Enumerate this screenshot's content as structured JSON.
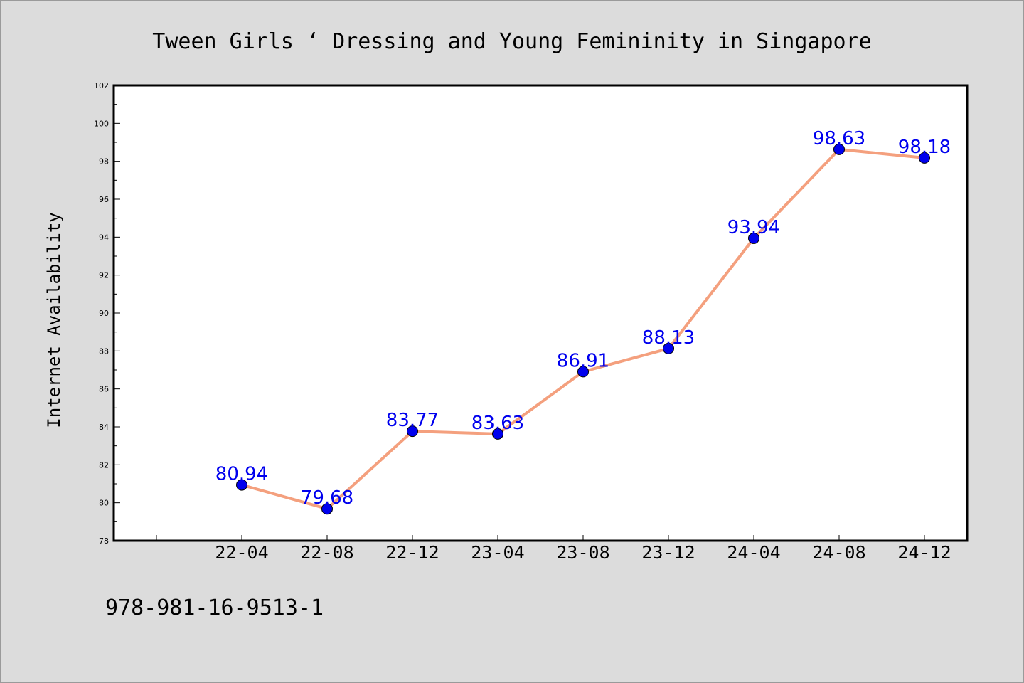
{
  "chart_data": {
    "type": "line",
    "title": "Tween Girls ‘ Dressing and Young Femininity in Singapore",
    "ylabel": "Internet Availability",
    "xlabel": "",
    "categories": [
      "22-04",
      "22-08",
      "22-12",
      "23-04",
      "23-08",
      "23-12",
      "24-04",
      "24-08",
      "24-12"
    ],
    "series": [
      {
        "values": [
          80.94,
          79.68,
          83.77,
          83.63,
          86.91,
          88.13,
          93.94,
          98.63,
          98.18
        ],
        "labels": [
          "80.94",
          "79.68",
          "83.77",
          "83.63",
          "86.91",
          "88.13",
          "93.94",
          "98.63",
          "98.18"
        ],
        "line_color": "#f4a07e",
        "marker_color": "#0000ee"
      }
    ],
    "ylim": [
      78,
      102
    ],
    "yticks": [
      78,
      80,
      82,
      84,
      86,
      88,
      90,
      92,
      94,
      96,
      98,
      100,
      102
    ],
    "grid": false,
    "legend": "none",
    "label_color": "#0000ee"
  },
  "footer": {
    "isbn": "978-981-16-9513-1"
  }
}
